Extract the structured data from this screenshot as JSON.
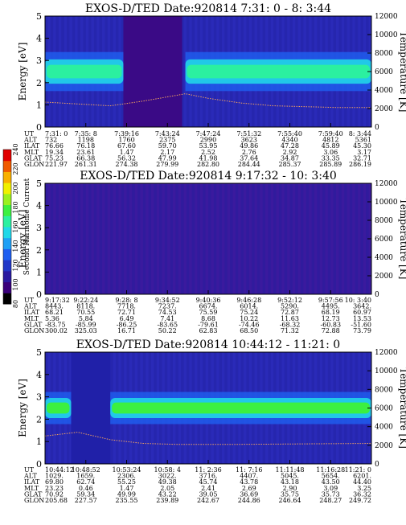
{
  "colorbar": {
    "label": "Second Harmonic Current",
    "ticks": [
      "80",
      "100",
      "120",
      "140",
      "160",
      "180",
      "200",
      "220",
      "240"
    ],
    "colors": [
      "#000000",
      "#3a007a",
      "#2a1aa0",
      "#2238c8",
      "#1f5ff0",
      "#1fa0f5",
      "#21d8e8",
      "#2bf0a0",
      "#3cf040",
      "#9af020",
      "#f0f000",
      "#f8b000",
      "#f05a00",
      "#e00000"
    ]
  },
  "row_labels": [
    "UT",
    "ALT",
    "ILAT",
    "MLT",
    "GLAT",
    "GLON"
  ],
  "panels": [
    {
      "title": "EXOS-D/TED  Date:920814  7:31: 0 - 8: 3:44",
      "ylabel": "Energy [eV]",
      "y2label": "Temperature [K]",
      "yticks": [
        "0",
        "1",
        "2",
        "3",
        "4",
        "5"
      ],
      "y2ticks": [
        "0",
        "2000",
        "4000",
        "6000",
        "8000",
        "10000",
        "12000"
      ],
      "columns": [
        [
          "7:31: 0",
          "732",
          "76.66",
          "19.34",
          "75.23",
          "221.97"
        ],
        [
          "7:35: 8",
          "1198",
          "76.18",
          "23.61",
          "66.38",
          "261.31"
        ],
        [
          "7:39:16",
          "1760",
          "67.60",
          "1.47",
          "56.32",
          "274.38"
        ],
        [
          "7:43:24",
          "2375",
          "59.70",
          "2.17",
          "47.99",
          "279.99"
        ],
        [
          "7:47:24",
          "2990",
          "53.95",
          "2.52",
          "41.98",
          "282.80"
        ],
        [
          "7:51:32",
          "3623",
          "49.86",
          "2.76",
          "37.64",
          "284.44"
        ],
        [
          "7:55:40",
          "4340",
          "47.28",
          "2.92",
          "34.87",
          "285.37"
        ],
        [
          "7:59:40",
          "4812",
          "45.89",
          "3.06",
          "33.35",
          "285.89"
        ],
        [
          "8: 3:44",
          "5361",
          "45.30",
          "3.17",
          "32.71",
          "286.19"
        ]
      ],
      "spectrogram": {
        "background": "#2a2ab8",
        "band": {
          "center_ev": 2.5,
          "half_width_ev": 0.55,
          "color_core": "#2bf0a0",
          "color_edge": "#21c8e8",
          "segments": [
            [
              0.0,
              0.24
            ],
            [
              0.43,
              1.0
            ]
          ]
        },
        "gap": {
          "from": 0.24,
          "to": 0.42,
          "color": "#3a0a86"
        },
        "temperature_k": [
          [
            0.0,
            2700
          ],
          [
            0.1,
            2500
          ],
          [
            0.2,
            2300
          ],
          [
            0.3,
            2800
          ],
          [
            0.43,
            3600
          ],
          [
            0.5,
            3100
          ],
          [
            0.6,
            2600
          ],
          [
            0.7,
            2300
          ],
          [
            0.8,
            2200
          ],
          [
            0.9,
            2100
          ],
          [
            1.0,
            2100
          ]
        ]
      }
    },
    {
      "title": "EXOS-D/TED   Date:920814  9:17:32 - 10: 3:40",
      "ylabel": "Energy [eV]",
      "y2label": "Temperature [K]",
      "yticks": [
        "0",
        "1",
        "2",
        "3",
        "4",
        "5"
      ],
      "y2ticks": [
        "0",
        "2000",
        "4000",
        "6000",
        "8000",
        "10000",
        "12000"
      ],
      "columns": [
        [
          "9:17:32",
          "8443.",
          "68.21",
          "5.36",
          "-83.75",
          "300.02"
        ],
        [
          "9:22:24",
          "8118.",
          "70.55",
          "5.84",
          "-85.99",
          "325.03"
        ],
        [
          "9:28: 8",
          "7718.",
          "72.71",
          "6.49",
          "-86.25",
          "16.71"
        ],
        [
          "9:34:52",
          "7237.",
          "74.53",
          "7.41",
          "-83.65",
          "50.22"
        ],
        [
          "9:40:36",
          "6674.",
          "75.59",
          "8.68",
          "-79.61",
          "62.83"
        ],
        [
          "9:46:28",
          "6014.",
          "75.24",
          "10.22",
          "-74.46",
          "68.50"
        ],
        [
          "9:52:12",
          "5290.",
          "72.87",
          "11.63",
          "-68.32",
          "71.32"
        ],
        [
          "9:57:56",
          "4495.",
          "68.19",
          "12.73",
          "-60.83",
          "72.88"
        ],
        [
          "10: 3:40",
          "3642.",
          "60.97",
          "13.53",
          "-51.60",
          "73.79"
        ]
      ],
      "spectrogram": {
        "background": "#3a1a9e"
      }
    },
    {
      "title": "EXOS-D/TED  Date:920814  10:44:12 - 11:21: 0",
      "ylabel": "Energy [eV]",
      "y2label": "Temperature [K]",
      "yticks": [
        "0",
        "1",
        "2",
        "3",
        "4",
        "5"
      ],
      "y2ticks": [
        "0",
        "2000",
        "4000",
        "6000",
        "8000",
        "10000",
        "12000"
      ],
      "columns": [
        [
          "10:44:12",
          "1029.",
          "69.80",
          "23.23",
          "70.92",
          "205.68"
        ],
        [
          "10:48:52",
          "1659.",
          "62.74",
          "0.46",
          "59.34",
          "227.57"
        ],
        [
          "10:53:24",
          "2306.",
          "55.25",
          "1.47",
          "49.99",
          "235.55"
        ],
        [
          "10:58: 4",
          "3022.",
          "49.38",
          "2.05",
          "43.22",
          "239.89"
        ],
        [
          "11: 2:36",
          "3716.",
          "45.74",
          "2.41",
          "39.05",
          "242.67"
        ],
        [
          "11: 7:16",
          "4407.",
          "43.78",
          "2.69",
          "36.69",
          "244.86"
        ],
        [
          "11:11:48",
          "5045.",
          "43.18",
          "2.90",
          "35.75",
          "246.64"
        ],
        [
          "11:16:28",
          "5654.",
          "43.50",
          "3.09",
          "35.73",
          "248.27"
        ],
        [
          "11:21: 0",
          "6201.",
          "44.40",
          "3.25",
          "36.32",
          "249.72"
        ]
      ],
      "spectrogram": {
        "background": "#2a2ab8",
        "band": {
          "center_ev": 2.5,
          "half_width_ev": 0.45,
          "color_core": "#3cf040",
          "color_edge": "#21c8e8",
          "segments": [
            [
              0.0,
              0.08
            ],
            [
              0.2,
              1.0
            ]
          ]
        },
        "gap": {
          "from": 0.08,
          "to": 0.2,
          "color": "#2020a8"
        },
        "temperature_k": [
          [
            0.0,
            3000
          ],
          [
            0.1,
            3400
          ],
          [
            0.2,
            2600
          ],
          [
            0.3,
            2200
          ],
          [
            0.4,
            2100
          ],
          [
            0.6,
            2100
          ],
          [
            0.8,
            2150
          ],
          [
            1.0,
            2200
          ]
        ]
      }
    }
  ],
  "chart_data": [
    {
      "type": "heatmap",
      "title": "EXOS-D/TED  Date:920814  7:31: 0 - 8: 3:44",
      "ylabel": "Energy [eV]",
      "y2label": "Temperature [K]",
      "ylim": [
        0,
        5
      ],
      "y2lim": [
        0,
        12000
      ],
      "x": [
        "7:31: 0",
        "7:35: 8",
        "7:39:16",
        "7:43:24",
        "7:47:24",
        "7:51:32",
        "7:55:40",
        "7:59:40",
        "8: 3:44"
      ],
      "colorbar_label": "Second Harmonic Current",
      "colorbar_range": [
        80,
        240
      ]
    },
    {
      "type": "heatmap",
      "title": "EXOS-D/TED   Date:920814  9:17:32 - 10: 3:40",
      "ylabel": "Energy [eV]",
      "y2label": "Temperature [K]",
      "ylim": [
        0,
        5
      ],
      "y2lim": [
        0,
        12000
      ],
      "x": [
        "9:17:32",
        "9:22:24",
        "9:28: 8",
        "9:34:52",
        "9:40:36",
        "9:46:28",
        "9:52:12",
        "9:57:56",
        "10: 3:40"
      ],
      "colorbar_label": "Second Harmonic Current",
      "colorbar_range": [
        80,
        240
      ]
    },
    {
      "type": "heatmap",
      "title": "EXOS-D/TED  Date:920814  10:44:12 - 11:21: 0",
      "ylabel": "Energy [eV]",
      "y2label": "Temperature [K]",
      "ylim": [
        0,
        5
      ],
      "y2lim": [
        0,
        12000
      ],
      "x": [
        "10:44:12",
        "10:48:52",
        "10:53:24",
        "10:58: 4",
        "11: 2:36",
        "11: 7:16",
        "11:11:48",
        "11:16:28",
        "11:21: 0"
      ],
      "colorbar_label": "Second Harmonic Current",
      "colorbar_range": [
        80,
        240
      ]
    }
  ]
}
